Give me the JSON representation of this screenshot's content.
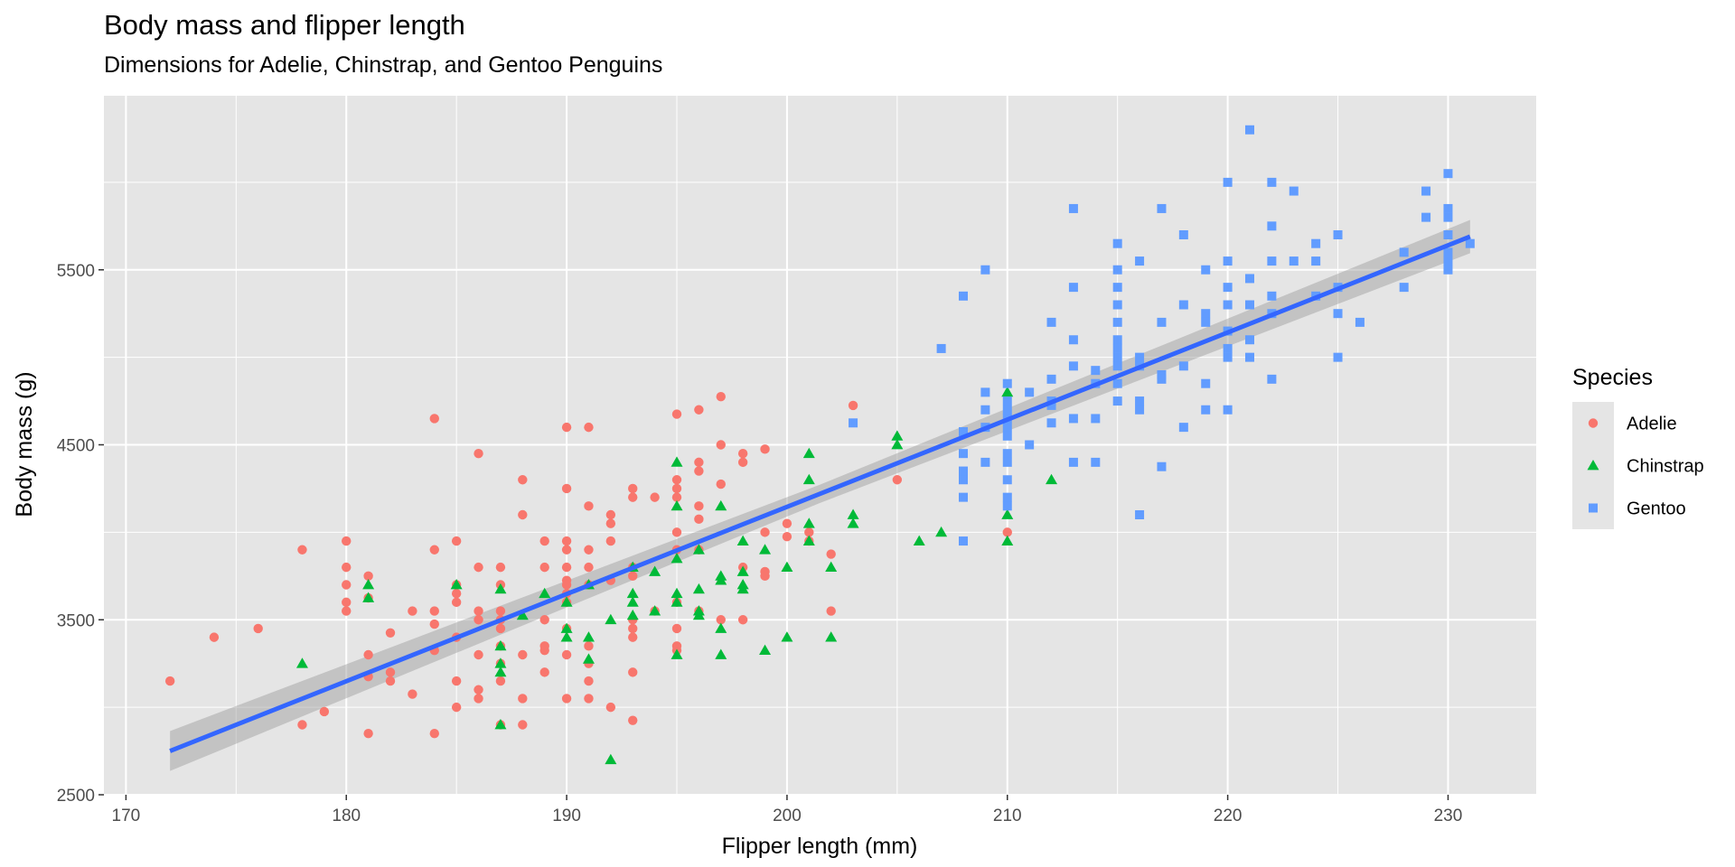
{
  "chart_data": {
    "type": "scatter",
    "title": "Body mass and flipper length",
    "subtitle": "Dimensions for Adelie, Chinstrap, and Gentoo Penguins",
    "xlabel": "Flipper length (mm)",
    "ylabel": "Body mass (g)",
    "xlim": [
      169,
      234
    ],
    "ylim": [
      2500,
      6500
    ],
    "x_ticks": [
      170,
      180,
      190,
      200,
      210,
      220,
      230
    ],
    "y_ticks": [
      2500,
      3500,
      4500,
      5500
    ],
    "grid": true,
    "legend": {
      "title": "Species",
      "position": "right"
    },
    "background": "#e5e5e5",
    "series": [
      {
        "name": "Adelie",
        "shape": "circle",
        "color": "#f8766d",
        "points": [
          [
            172,
            3150
          ],
          [
            174,
            3400
          ],
          [
            176,
            3450
          ],
          [
            178,
            3900
          ],
          [
            178,
            2900
          ],
          [
            179,
            2975
          ],
          [
            180,
            3950
          ],
          [
            180,
            3800
          ],
          [
            180,
            3700
          ],
          [
            180,
            3600
          ],
          [
            180,
            3550
          ],
          [
            181,
            3750
          ],
          [
            181,
            3625
          ],
          [
            181,
            3300
          ],
          [
            181,
            3175
          ],
          [
            181,
            2850
          ],
          [
            182,
            3425
          ],
          [
            182,
            3200
          ],
          [
            182,
            3150
          ],
          [
            183,
            3550
          ],
          [
            183,
            3075
          ],
          [
            184,
            4650
          ],
          [
            184,
            3900
          ],
          [
            184,
            3550
          ],
          [
            184,
            3475
          ],
          [
            184,
            3325
          ],
          [
            184,
            2850
          ],
          [
            185,
            3950
          ],
          [
            185,
            3700
          ],
          [
            185,
            3650
          ],
          [
            185,
            3600
          ],
          [
            185,
            3400
          ],
          [
            185,
            3150
          ],
          [
            185,
            3000
          ],
          [
            186,
            4450
          ],
          [
            186,
            3800
          ],
          [
            186,
            3550
          ],
          [
            186,
            3500
          ],
          [
            186,
            3300
          ],
          [
            186,
            3100
          ],
          [
            186,
            3050
          ],
          [
            187,
            3800
          ],
          [
            187,
            3700
          ],
          [
            187,
            3550
          ],
          [
            187,
            3500
          ],
          [
            187,
            3450
          ],
          [
            187,
            3350
          ],
          [
            187,
            3250
          ],
          [
            187,
            3150
          ],
          [
            187,
            2900
          ],
          [
            188,
            4300
          ],
          [
            188,
            4100
          ],
          [
            188,
            3300
          ],
          [
            188,
            3050
          ],
          [
            188,
            2900
          ],
          [
            189,
            3950
          ],
          [
            189,
            3800
          ],
          [
            189,
            3500
          ],
          [
            189,
            3350
          ],
          [
            189,
            3325
          ],
          [
            189,
            3200
          ],
          [
            190,
            4600
          ],
          [
            190,
            4250
          ],
          [
            190,
            3950
          ],
          [
            190,
            3900
          ],
          [
            190,
            3800
          ],
          [
            190,
            3725
          ],
          [
            190,
            3700
          ],
          [
            190,
            3650
          ],
          [
            190,
            3600
          ],
          [
            190,
            3450
          ],
          [
            190,
            3300
          ],
          [
            190,
            3050
          ],
          [
            191,
            4600
          ],
          [
            191,
            4150
          ],
          [
            191,
            3900
          ],
          [
            191,
            3800
          ],
          [
            191,
            3700
          ],
          [
            191,
            3350
          ],
          [
            191,
            3250
          ],
          [
            191,
            3150
          ],
          [
            191,
            3050
          ],
          [
            192,
            4100
          ],
          [
            192,
            4050
          ],
          [
            192,
            3950
          ],
          [
            192,
            3725
          ],
          [
            192,
            3000
          ],
          [
            193,
            4250
          ],
          [
            193,
            4200
          ],
          [
            193,
            3800
          ],
          [
            193,
            3750
          ],
          [
            193,
            3500
          ],
          [
            193,
            3450
          ],
          [
            193,
            3400
          ],
          [
            193,
            3200
          ],
          [
            193,
            2925
          ],
          [
            194,
            4200
          ],
          [
            194,
            3550
          ],
          [
            195,
            4675
          ],
          [
            195,
            4300
          ],
          [
            195,
            4250
          ],
          [
            195,
            4200
          ],
          [
            195,
            4000
          ],
          [
            195,
            3900
          ],
          [
            195,
            3600
          ],
          [
            195,
            3450
          ],
          [
            195,
            3350
          ],
          [
            195,
            3325
          ],
          [
            196,
            4700
          ],
          [
            196,
            4400
          ],
          [
            196,
            4350
          ],
          [
            196,
            4150
          ],
          [
            196,
            4075
          ],
          [
            196,
            3900
          ],
          [
            196,
            3550
          ],
          [
            197,
            4775
          ],
          [
            197,
            4500
          ],
          [
            197,
            4275
          ],
          [
            197,
            3500
          ],
          [
            198,
            4450
          ],
          [
            198,
            4400
          ],
          [
            198,
            3800
          ],
          [
            198,
            3500
          ],
          [
            199,
            4475
          ],
          [
            199,
            4000
          ],
          [
            199,
            3775
          ],
          [
            199,
            3750
          ],
          [
            200,
            4050
          ],
          [
            200,
            3975
          ],
          [
            201,
            4000
          ],
          [
            201,
            3950
          ],
          [
            202,
            3875
          ],
          [
            202,
            3550
          ],
          [
            203,
            4725
          ],
          [
            205,
            4300
          ],
          [
            210,
            4000
          ]
        ]
      },
      {
        "name": "Chinstrap",
        "shape": "triangle",
        "color": "#00ba38",
        "points": [
          [
            178,
            3250
          ],
          [
            181,
            3700
          ],
          [
            181,
            3625
          ],
          [
            185,
            3700
          ],
          [
            187,
            3675
          ],
          [
            187,
            3350
          ],
          [
            187,
            3250
          ],
          [
            187,
            3200
          ],
          [
            187,
            2900
          ],
          [
            188,
            3525
          ],
          [
            189,
            3650
          ],
          [
            190,
            3600
          ],
          [
            190,
            3450
          ],
          [
            190,
            3400
          ],
          [
            191,
            3700
          ],
          [
            191,
            3400
          ],
          [
            191,
            3275
          ],
          [
            192,
            3500
          ],
          [
            192,
            2700
          ],
          [
            193,
            3800
          ],
          [
            193,
            3650
          ],
          [
            193,
            3600
          ],
          [
            193,
            3525
          ],
          [
            194,
            3775
          ],
          [
            194,
            3550
          ],
          [
            195,
            4400
          ],
          [
            195,
            4150
          ],
          [
            195,
            3850
          ],
          [
            195,
            3650
          ],
          [
            195,
            3600
          ],
          [
            195,
            3300
          ],
          [
            196,
            3900
          ],
          [
            196,
            3675
          ],
          [
            196,
            3550
          ],
          [
            196,
            3525
          ],
          [
            197,
            4150
          ],
          [
            197,
            3750
          ],
          [
            197,
            3725
          ],
          [
            197,
            3450
          ],
          [
            197,
            3300
          ],
          [
            198,
            3950
          ],
          [
            198,
            3775
          ],
          [
            198,
            3700
          ],
          [
            198,
            3675
          ],
          [
            199,
            3900
          ],
          [
            199,
            3325
          ],
          [
            200,
            3800
          ],
          [
            200,
            3400
          ],
          [
            201,
            4450
          ],
          [
            201,
            4300
          ],
          [
            201,
            4050
          ],
          [
            201,
            3950
          ],
          [
            202,
            3800
          ],
          [
            202,
            3400
          ],
          [
            203,
            4100
          ],
          [
            203,
            4050
          ],
          [
            205,
            4550
          ],
          [
            205,
            4500
          ],
          [
            206,
            3950
          ],
          [
            207,
            4000
          ],
          [
            210,
            4800
          ],
          [
            210,
            4100
          ],
          [
            210,
            3950
          ],
          [
            212,
            4300
          ]
        ]
      },
      {
        "name": "Gentoo",
        "shape": "square",
        "color": "#619cff",
        "points": [
          [
            203,
            4625
          ],
          [
            207,
            5050
          ],
          [
            208,
            5350
          ],
          [
            208,
            4575
          ],
          [
            208,
            4450
          ],
          [
            208,
            4350
          ],
          [
            208,
            4300
          ],
          [
            208,
            4200
          ],
          [
            208,
            3950
          ],
          [
            209,
            5500
          ],
          [
            209,
            4800
          ],
          [
            209,
            4700
          ],
          [
            209,
            4600
          ],
          [
            209,
            4400
          ],
          [
            210,
            4850
          ],
          [
            210,
            4750
          ],
          [
            210,
            4700
          ],
          [
            210,
            4650
          ],
          [
            210,
            4600
          ],
          [
            210,
            4550
          ],
          [
            210,
            4450
          ],
          [
            210,
            4400
          ],
          [
            210,
            4300
          ],
          [
            210,
            4200
          ],
          [
            210,
            4150
          ],
          [
            211,
            4800
          ],
          [
            211,
            4500
          ],
          [
            212,
            5200
          ],
          [
            212,
            4875
          ],
          [
            212,
            4750
          ],
          [
            212,
            4725
          ],
          [
            212,
            4625
          ],
          [
            213,
            5850
          ],
          [
            213,
            5400
          ],
          [
            213,
            5100
          ],
          [
            213,
            4950
          ],
          [
            213,
            4650
          ],
          [
            213,
            4400
          ],
          [
            214,
            4925
          ],
          [
            214,
            4850
          ],
          [
            214,
            4650
          ],
          [
            214,
            4400
          ],
          [
            215,
            5650
          ],
          [
            215,
            5500
          ],
          [
            215,
            5400
          ],
          [
            215,
            5300
          ],
          [
            215,
            5200
          ],
          [
            215,
            5100
          ],
          [
            215,
            5050
          ],
          [
            215,
            5000
          ],
          [
            215,
            4950
          ],
          [
            215,
            4850
          ],
          [
            215,
            4750
          ],
          [
            216,
            5550
          ],
          [
            216,
            5000
          ],
          [
            216,
            4950
          ],
          [
            216,
            4750
          ],
          [
            216,
            4700
          ],
          [
            216,
            4100
          ],
          [
            217,
            5850
          ],
          [
            217,
            5200
          ],
          [
            217,
            4900
          ],
          [
            217,
            4875
          ],
          [
            217,
            4375
          ],
          [
            218,
            5700
          ],
          [
            218,
            5300
          ],
          [
            218,
            4950
          ],
          [
            218,
            4600
          ],
          [
            219,
            5500
          ],
          [
            219,
            5250
          ],
          [
            219,
            5200
          ],
          [
            219,
            4850
          ],
          [
            219,
            4700
          ],
          [
            220,
            6000
          ],
          [
            220,
            5550
          ],
          [
            220,
            5400
          ],
          [
            220,
            5300
          ],
          [
            220,
            5150
          ],
          [
            220,
            5050
          ],
          [
            220,
            5000
          ],
          [
            220,
            4700
          ],
          [
            221,
            6300
          ],
          [
            221,
            5450
          ],
          [
            221,
            5300
          ],
          [
            221,
            5100
          ],
          [
            221,
            5000
          ],
          [
            222,
            6000
          ],
          [
            222,
            5750
          ],
          [
            222,
            5550
          ],
          [
            222,
            5350
          ],
          [
            222,
            5250
          ],
          [
            222,
            4875
          ],
          [
            223,
            5950
          ],
          [
            223,
            5550
          ],
          [
            224,
            5650
          ],
          [
            224,
            5550
          ],
          [
            224,
            5350
          ],
          [
            225,
            5700
          ],
          [
            225,
            5400
          ],
          [
            225,
            5250
          ],
          [
            225,
            5000
          ],
          [
            226,
            5200
          ],
          [
            228,
            5600
          ],
          [
            228,
            5400
          ],
          [
            229,
            5950
          ],
          [
            229,
            5800
          ],
          [
            230,
            6050
          ],
          [
            230,
            5850
          ],
          [
            230,
            5800
          ],
          [
            230,
            5700
          ],
          [
            230,
            5600
          ],
          [
            230,
            5550
          ],
          [
            230,
            5500
          ],
          [
            231,
            5650
          ]
        ]
      }
    ],
    "trend_line": {
      "color": "#3366ff",
      "from": [
        172,
        2750
      ],
      "to": [
        231,
        5690
      ],
      "ribbon_halfwidth": 95
    }
  }
}
